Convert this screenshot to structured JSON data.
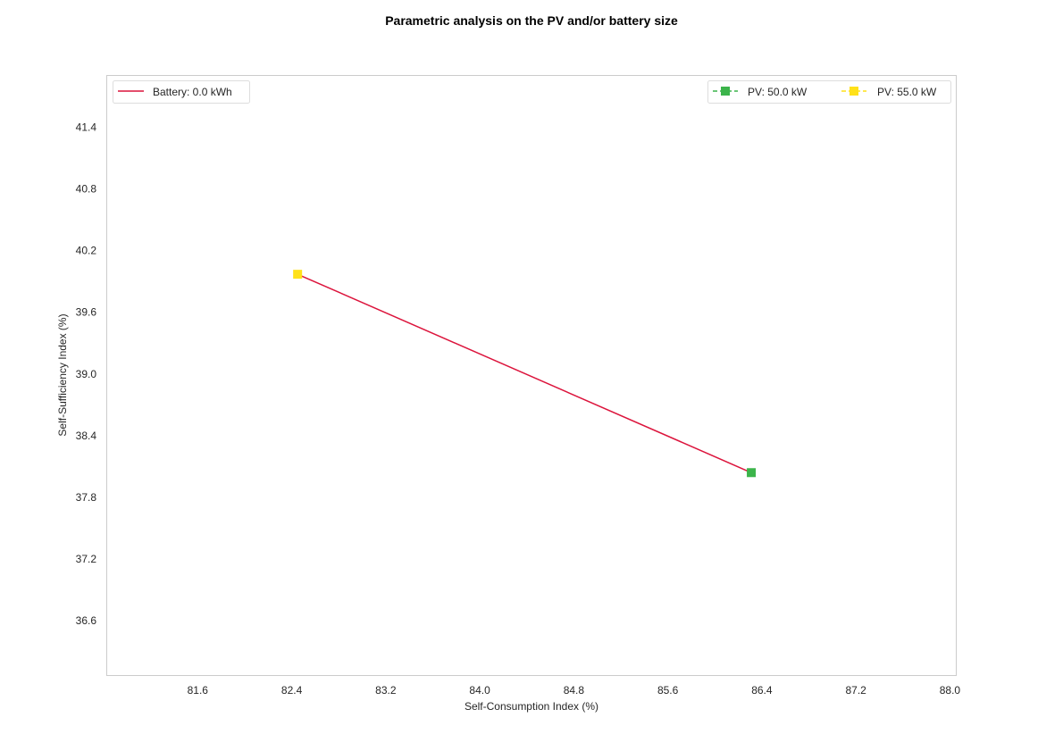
{
  "chart_data": {
    "type": "line",
    "title": "Parametric analysis on the PV and/or battery size",
    "xlabel": "Self-Consumption Index (%)",
    "ylabel": "Self-Sufficiency Index (%)",
    "xlim": [
      80.83,
      88.05
    ],
    "ylim": [
      36.07,
      41.9
    ],
    "x_ticks": [
      "81.6",
      "82.4",
      "83.2",
      "84.0",
      "84.8",
      "85.6",
      "86.4",
      "87.2",
      "88.0"
    ],
    "y_ticks": [
      "36.6",
      "37.2",
      "37.8",
      "38.4",
      "39.0",
      "39.6",
      "40.2",
      "40.8",
      "41.4"
    ],
    "grid": false,
    "series": [
      {
        "name": "Battery: 0.0 kWh",
        "color": "#dc143c",
        "points": [
          {
            "x": 82.45,
            "y": 39.97,
            "pv": "PV: 55.0 kW"
          },
          {
            "x": 86.31,
            "y": 38.04,
            "pv": "PV: 50.0 kW"
          }
        ]
      }
    ],
    "markers": [
      {
        "name": "PV: 50.0 kW",
        "color": "#3cb44b",
        "shape": "square",
        "x": 86.31,
        "y": 38.04
      },
      {
        "name": "PV: 55.0 kW",
        "color": "#ffe119",
        "shape": "square",
        "x": 82.45,
        "y": 39.97
      }
    ],
    "legends": {
      "left": {
        "placement": "top-left",
        "entries": [
          "Battery: 0.0 kWh"
        ]
      },
      "right": {
        "placement": "top-right",
        "entries": [
          "PV: 50.0 kW",
          "PV: 55.0 kW"
        ]
      }
    }
  }
}
